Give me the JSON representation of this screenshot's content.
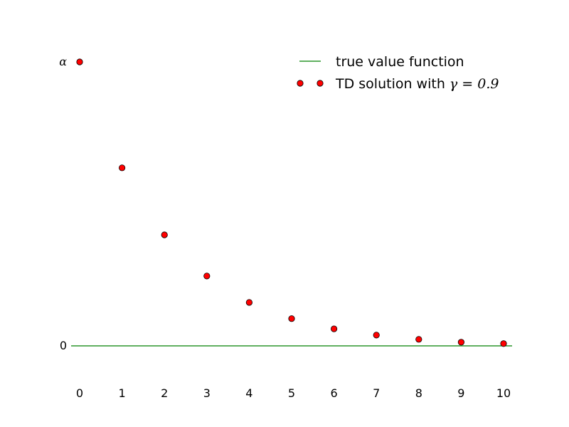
{
  "chart_data": {
    "type": "scatter",
    "title": "",
    "xlabel": "",
    "ylabel": "",
    "x": [
      0,
      1,
      2,
      3,
      4,
      5,
      6,
      7,
      8,
      9,
      10
    ],
    "xlim": [
      0,
      10
    ],
    "ylim": [
      0,
      1
    ],
    "xticks": [
      "0",
      "1",
      "2",
      "3",
      "4",
      "5",
      "6",
      "7",
      "8",
      "9",
      "10"
    ],
    "yticks": [
      {
        "value": 0,
        "label": "0"
      },
      {
        "value": 1,
        "label": "α"
      }
    ],
    "grid": false,
    "legend_position": "top-right",
    "series": [
      {
        "name": "true value function",
        "kind": "line",
        "color": "#008000",
        "values": [
          0,
          0,
          0,
          0,
          0,
          0,
          0,
          0,
          0,
          0,
          0
        ]
      },
      {
        "name_prefix": "TD solution with ",
        "name_math": "γ = 0.9",
        "kind": "markers",
        "color": "#ff0000",
        "edge_color": "#000000",
        "values": [
          1.0,
          0.627,
          0.391,
          0.246,
          0.153,
          0.096,
          0.06,
          0.038,
          0.023,
          0.013,
          0.008
        ]
      }
    ]
  }
}
